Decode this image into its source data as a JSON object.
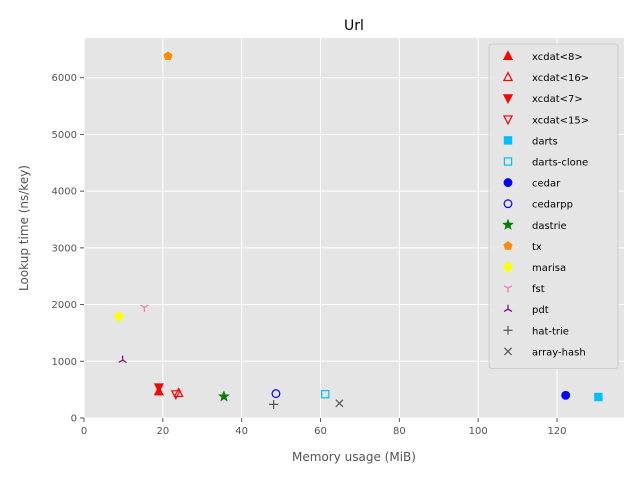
{
  "chart_data": {
    "type": "scatter",
    "title": "Url",
    "xlabel": "Memory usage (MiB)",
    "ylabel": "Lookup time (ns/key)",
    "xlim": [
      0,
      137
    ],
    "ylim": [
      0,
      6700
    ],
    "xticks": [
      0,
      20,
      40,
      60,
      80,
      100,
      120
    ],
    "yticks": [
      0,
      1000,
      2000,
      3000,
      4000,
      5000,
      6000
    ],
    "grid": true,
    "legend": "top-right",
    "series": [
      {
        "name": "xcdat<8>",
        "marker": "triangle-up",
        "fill": true,
        "color": "#ff0000",
        "x": 19.0,
        "y": 470
      },
      {
        "name": "xcdat<16>",
        "marker": "triangle-up",
        "fill": false,
        "color": "#ff0000",
        "x": 24.0,
        "y": 440
      },
      {
        "name": "xcdat<7>",
        "marker": "triangle-down",
        "fill": true,
        "color": "#ff0000",
        "x": 19.0,
        "y": 540
      },
      {
        "name": "xcdat<15>",
        "marker": "triangle-down",
        "fill": false,
        "color": "#ff0000",
        "x": 23.3,
        "y": 420
      },
      {
        "name": "darts",
        "marker": "square",
        "fill": true,
        "color": "#00bfff",
        "x": 130.5,
        "y": 370
      },
      {
        "name": "darts-clone",
        "marker": "square",
        "fill": false,
        "color": "#00bfff",
        "x": 61.2,
        "y": 420
      },
      {
        "name": "cedar",
        "marker": "circle",
        "fill": true,
        "color": "#0000ff",
        "x": 122.2,
        "y": 400
      },
      {
        "name": "cedarpp",
        "marker": "circle",
        "fill": false,
        "color": "#0000ff",
        "x": 48.7,
        "y": 430
      },
      {
        "name": "dastrie",
        "marker": "star",
        "fill": true,
        "color": "#008000",
        "x": 35.5,
        "y": 380
      },
      {
        "name": "tx",
        "marker": "pentagon",
        "fill": true,
        "color": "#ff8c00",
        "x": 21.3,
        "y": 6380
      },
      {
        "name": "marisa",
        "marker": "diamond",
        "fill": true,
        "color": "#ffff00",
        "x": 8.9,
        "y": 1790
      },
      {
        "name": "fst",
        "marker": "tri-down",
        "fill": false,
        "color": "#ff69b4",
        "x": 15.3,
        "y": 1950
      },
      {
        "name": "pdt",
        "marker": "tri-up",
        "fill": false,
        "color": "#800080",
        "x": 9.8,
        "y": 1020
      },
      {
        "name": "hat-trie",
        "marker": "plus",
        "fill": false,
        "color": "#555555",
        "x": 48.1,
        "y": 240
      },
      {
        "name": "array-hash",
        "marker": "x",
        "fill": false,
        "color": "#555555",
        "x": 64.8,
        "y": 260
      }
    ]
  }
}
